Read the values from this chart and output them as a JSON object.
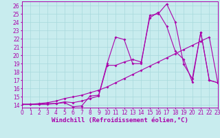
{
  "xlabel": "Windchill (Refroidissement éolien,°C)",
  "bg_color": "#c8ecee",
  "grid_color": "#a8d8dc",
  "line_color": "#aa00aa",
  "x_all": [
    0,
    1,
    2,
    3,
    4,
    5,
    6,
    7,
    8,
    9,
    10,
    11,
    12,
    13,
    14,
    15,
    16,
    17,
    18,
    19,
    20,
    21,
    22,
    23
  ],
  "y_line1": [
    14.1,
    14.1,
    14.1,
    14.1,
    14.2,
    14.3,
    13.8,
    13.9,
    15.1,
    15.2,
    19.0,
    22.2,
    21.9,
    19.0,
    19.0,
    24.8,
    25.0,
    26.2,
    24.0,
    18.9,
    17.2,
    22.8,
    17.0,
    16.7
  ],
  "y_line2": [
    14.1,
    14.1,
    14.1,
    14.2,
    14.2,
    14.4,
    14.3,
    14.5,
    14.8,
    15.1,
    18.8,
    18.8,
    19.2,
    19.5,
    19.2,
    24.5,
    25.2,
    23.5,
    20.5,
    19.5,
    16.8,
    22.8,
    17.0,
    16.7
  ],
  "y_line3": [
    14.1,
    14.1,
    14.2,
    14.3,
    14.5,
    14.8,
    15.0,
    15.2,
    15.5,
    15.8,
    16.2,
    16.7,
    17.2,
    17.7,
    18.2,
    18.7,
    19.2,
    19.7,
    20.2,
    20.7,
    21.2,
    21.7,
    22.2,
    16.7
  ],
  "xlim": [
    0,
    23
  ],
  "ylim": [
    13.7,
    26.5
  ],
  "yticks": [
    14,
    15,
    16,
    17,
    18,
    19,
    20,
    21,
    22,
    23,
    24,
    25,
    26
  ],
  "xticks": [
    0,
    1,
    2,
    3,
    4,
    5,
    6,
    7,
    8,
    9,
    10,
    11,
    12,
    13,
    14,
    15,
    16,
    17,
    18,
    19,
    20,
    21,
    22,
    23
  ],
  "tick_fontsize": 5.5,
  "xlabel_fontsize": 6.5,
  "markersize": 2.0,
  "linewidth": 0.8
}
